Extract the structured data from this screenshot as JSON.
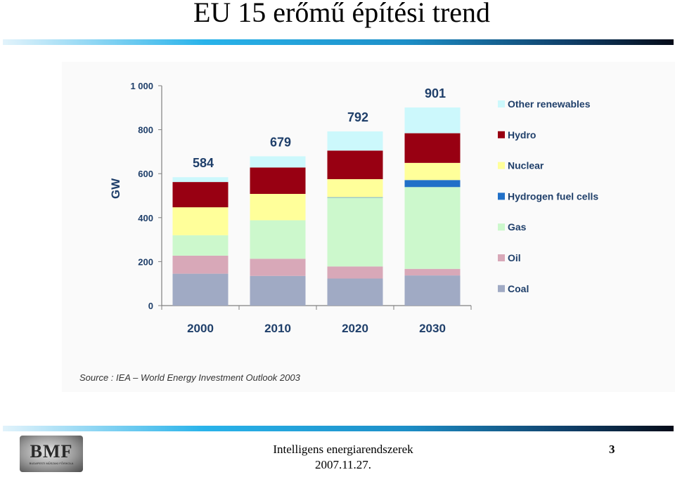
{
  "slide": {
    "title": "EU 15 erőmű építési trend",
    "source": "Source : IEA – World Energy Investment Outlook 2003",
    "footer_title": "Intelligens energiarendszerek",
    "footer_date": "2007.11.27.",
    "page_number": "3",
    "logo_text": "BMF",
    "logo_subtext": "BUDAPESTI MŰSZAKI FŐISKOLA"
  },
  "chart_data": {
    "type": "bar",
    "stacked": true,
    "categories": [
      "2000",
      "2010",
      "2020",
      "2030"
    ],
    "ylabel": "GW",
    "ylim": [
      0,
      1000
    ],
    "yticks": [
      0,
      200,
      400,
      600,
      800,
      1000
    ],
    "ytick_labels": [
      "0",
      "200",
      "400",
      "600",
      "800",
      "1 000"
    ],
    "totals": [
      584,
      679,
      792,
      901
    ],
    "grid": false,
    "legend_position": "right",
    "series": [
      {
        "name": "Coal",
        "color": "#a0aac4",
        "values": [
          145,
          135,
          123,
          137
        ]
      },
      {
        "name": "Oil",
        "color": "#d8a8b8",
        "values": [
          82,
          78,
          55,
          30
        ]
      },
      {
        "name": "Gas",
        "color": "#ccf8cc",
        "values": [
          93,
          175,
          313,
          372
        ]
      },
      {
        "name": "Hydrogen fuel cells",
        "color": "#2170c8",
        "values": [
          0,
          0,
          2,
          32
        ]
      },
      {
        "name": "Nuclear",
        "color": "#ffff9a",
        "values": [
          127,
          120,
          82,
          78
        ]
      },
      {
        "name": "Hydro",
        "color": "#980012",
        "values": [
          115,
          120,
          130,
          135
        ]
      },
      {
        "name": "Other renewables",
        "color": "#ccf8fc",
        "values": [
          22,
          51,
          87,
          117
        ]
      }
    ]
  }
}
